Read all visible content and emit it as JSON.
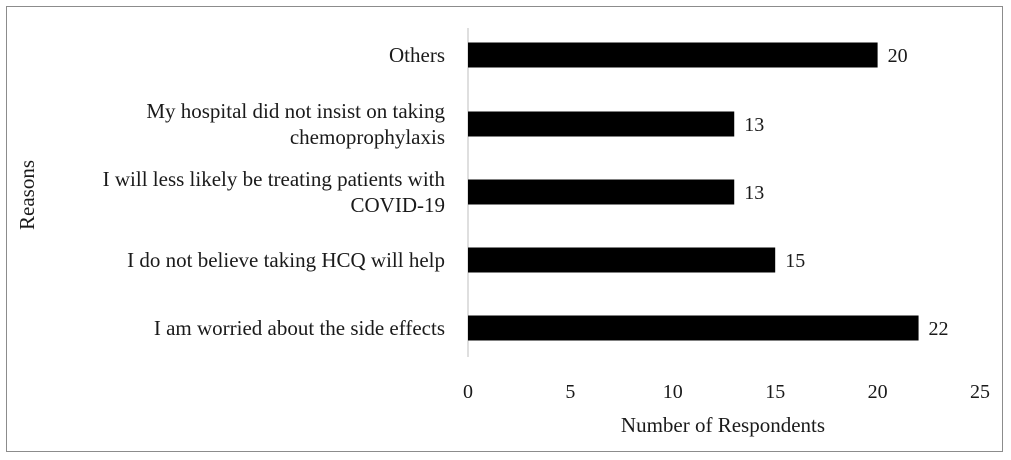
{
  "chart_data": {
    "type": "bar",
    "orientation": "horizontal",
    "xlabel": "Number of Respondents",
    "ylabel": "Reasons",
    "xlim": [
      0,
      25
    ],
    "xticks": [
      "0",
      "5",
      "10",
      "15",
      "20",
      "25"
    ],
    "grid": false,
    "legend": "none",
    "bar_color": "#000000",
    "categories": [
      {
        "lines": [
          "Others"
        ],
        "value": 20
      },
      {
        "lines": [
          "My hospital did not insist on taking",
          "chemoprophylaxis"
        ],
        "value": 13
      },
      {
        "lines": [
          "I will less likely be treating patients with",
          "COVID-19"
        ],
        "value": 13
      },
      {
        "lines": [
          "I do not believe taking HCQ will help"
        ],
        "value": 15
      },
      {
        "lines": [
          "I am worried about the side effects"
        ],
        "value": 22
      }
    ]
  }
}
